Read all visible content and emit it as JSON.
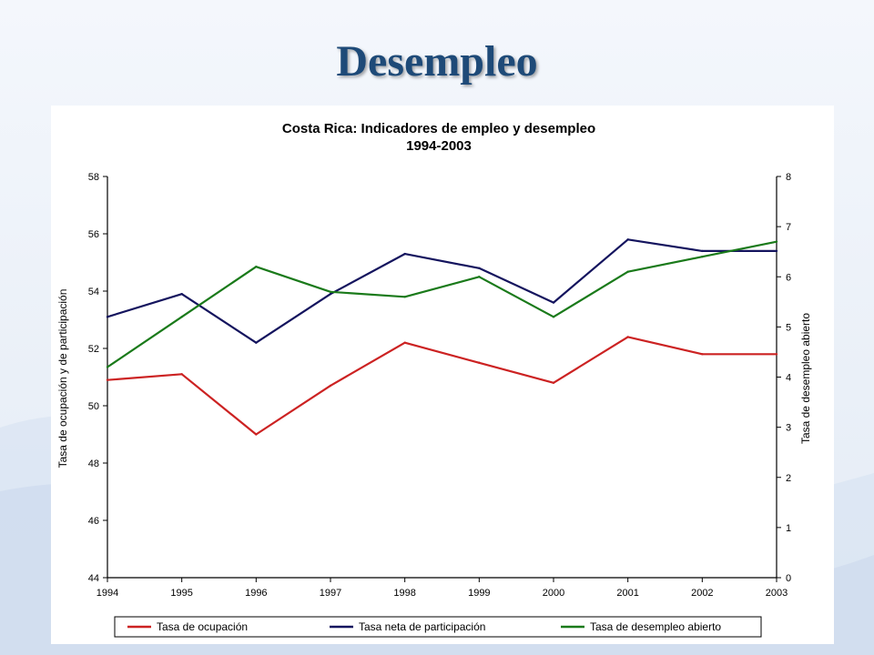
{
  "slide": {
    "title": "Desempleo"
  },
  "chart_data": {
    "type": "line",
    "title": "Costa Rica: Indicadores de empleo y desempleo",
    "subtitle": "1994-2003",
    "x": [
      "1994",
      "1995",
      "1996",
      "1997",
      "1998",
      "1999",
      "2000",
      "2001",
      "2002",
      "2003"
    ],
    "ylabel_left": "Tasa de ocupación y de participación",
    "ylabel_right": "Tasa de desempleo abierto",
    "ylim_left": [
      44,
      58
    ],
    "yticks_left": [
      44,
      46,
      48,
      50,
      52,
      54,
      56,
      58
    ],
    "ylim_right": [
      0,
      8
    ],
    "yticks_right": [
      0,
      1,
      2,
      3,
      4,
      5,
      6,
      7,
      8
    ],
    "grid": false,
    "legend_position": "bottom",
    "series": [
      {
        "name": "Tasa de ocupación",
        "axis": "left",
        "color": "#cc2222",
        "values": [
          50.9,
          51.1,
          49.0,
          50.7,
          52.2,
          51.5,
          50.8,
          52.4,
          51.8,
          51.8
        ]
      },
      {
        "name": "Tasa neta de participación",
        "axis": "left",
        "color": "#14145e",
        "values": [
          53.1,
          53.9,
          52.2,
          53.9,
          55.3,
          54.8,
          53.6,
          55.8,
          55.4,
          55.4
        ]
      },
      {
        "name": "Tasa de desempleo abierto",
        "axis": "right",
        "color": "#1a7a1a",
        "values": [
          4.2,
          5.2,
          6.2,
          5.7,
          5.6,
          6.0,
          5.2,
          6.1,
          6.4,
          6.7
        ]
      }
    ]
  }
}
